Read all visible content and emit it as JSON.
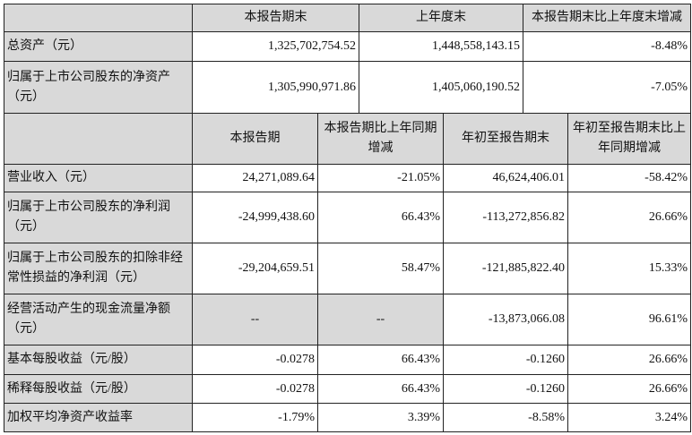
{
  "balance": {
    "headers": [
      "",
      "本报告期末",
      "上年度末",
      "本报告期末比上年度末增减"
    ],
    "rows": [
      {
        "label": "总资产（元）",
        "values": [
          "1,325,702,754.52",
          "1,448,558,143.15",
          "-8.48%"
        ]
      },
      {
        "label": "归属于上市公司股东的净资产（元）",
        "values": [
          "1,305,990,971.86",
          "1,405,060,190.52",
          "-7.05%"
        ]
      }
    ]
  },
  "income": {
    "headers": [
      "",
      "本报告期",
      "本报告期比上年同期增减",
      "年初至报告期末",
      "年初至报告期末比上年同期增减"
    ],
    "rows": [
      {
        "label": "营业收入（元）",
        "values": [
          "24,271,089.64",
          "-21.05%",
          "46,624,406.01",
          "-58.42%"
        ]
      },
      {
        "label": "归属于上市公司股东的净利润（元）",
        "values": [
          "-24,999,438.60",
          "66.43%",
          "-113,272,856.82",
          "26.66%"
        ]
      },
      {
        "label": "归属于上市公司股东的扣除非经常性损益的净利润（元）",
        "values": [
          "-29,204,659.51",
          "58.47%",
          "-121,885,822.40",
          "15.33%"
        ]
      },
      {
        "label": "经营活动产生的现金流量净额（元）",
        "values": [
          "--",
          "--",
          "-13,873,066.08",
          "96.61%"
        ]
      },
      {
        "label": "基本每股收益（元/股）",
        "values": [
          "-0.0278",
          "66.43%",
          "-0.1260",
          "26.66%"
        ]
      },
      {
        "label": "稀释每股收益（元/股）",
        "values": [
          "-0.0278",
          "66.43%",
          "-0.1260",
          "26.66%"
        ]
      },
      {
        "label": "加权平均净资产收益率",
        "values": [
          "-1.79%",
          "3.39%",
          "-8.58%",
          "3.24%"
        ]
      }
    ]
  }
}
